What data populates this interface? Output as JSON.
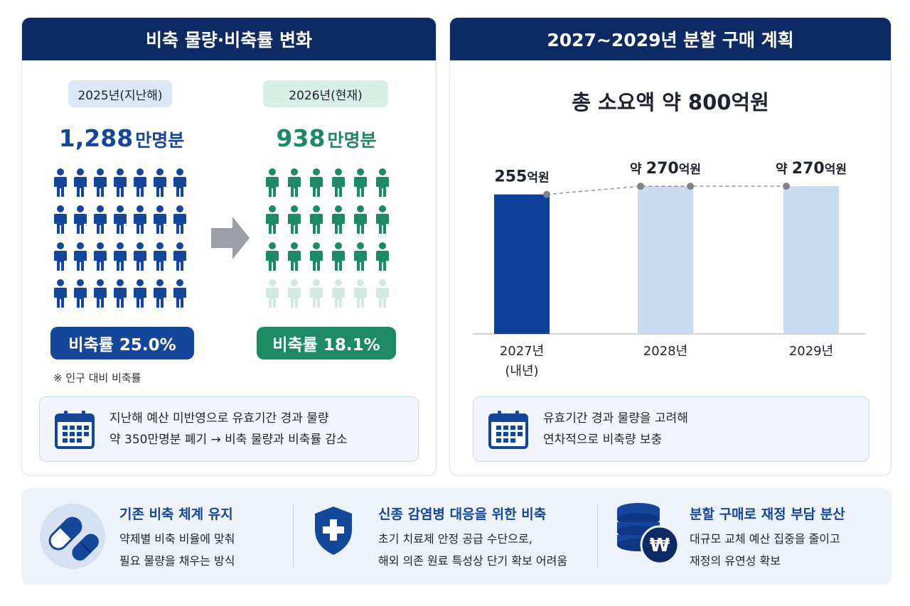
{
  "left_panel": {
    "title": "비축 물량·비축률 변화",
    "year_2025": {
      "label": "2025년(지난해)",
      "count_value": "1,288",
      "count_unit": "만명분",
      "rate": "비축률 25.0%",
      "filled_rows": 4,
      "total_rows": 4,
      "cols": 7,
      "color": "#14469a"
    },
    "year_2026": {
      "label": "2026년(현재)",
      "count_value": "938",
      "count_unit": "만명분",
      "rate": "비축률 18.1%",
      "filled_rows": 3,
      "total_rows": 4,
      "cols": 6,
      "color": "#1e8a63",
      "faded_color": "#d3e9e0"
    },
    "footnote": "※ 인구 대비 비축률",
    "info_line1": "지난해 예산 미반영으로 유효기간 경과 물량",
    "info_line2": "약 350만명분 폐기 → 비축 물량과 비축률 감소"
  },
  "right_panel": {
    "title": "2027~2029년 분할 구매 계획",
    "total": "총 소요액 약 800억원",
    "info_line1": "유효기간 경과 물량을 고려해",
    "info_line2": "연차적으로 비축량 보충"
  },
  "chart_data": {
    "type": "bar",
    "categories": [
      "2027년\n(내년)",
      "2028년",
      "2029년"
    ],
    "category_lines": [
      [
        "2027년",
        "(내년)"
      ],
      [
        "2028년"
      ],
      [
        "2029년"
      ]
    ],
    "values": [
      255,
      270,
      270
    ],
    "value_labels": [
      {
        "prefix": "",
        "num": "255",
        "unit": "억원"
      },
      {
        "prefix": "약 ",
        "num": "270",
        "unit": "억원"
      },
      {
        "prefix": "약 ",
        "num": "270",
        "unit": "억원"
      }
    ],
    "unit": "억원",
    "ylim": [
      0,
      300
    ],
    "bar_colors": [
      "#0e3f99",
      "#c9dbf1",
      "#c9dbf1"
    ],
    "trend_line": true,
    "trend_color": "#8e949c",
    "title": "총 소요액 약 800억원",
    "xlabel": "",
    "ylabel": ""
  },
  "features": [
    {
      "title": "기존 비축 체계 유지",
      "line1": "약제별 비축 비율에 맞춰",
      "line2": "필요 물량을 채우는 방식",
      "icon": "pill-capsule-icon"
    },
    {
      "title": "신종 감염병 대응을 위한 비축",
      "line1": "초기 치료제 안정 공급 수단으로,",
      "line2": "해외 의존 원료 특성상 단기 확보 어려움",
      "icon": "medical-shield-icon"
    },
    {
      "title": "분할 구매로 재정 부담 분산",
      "line1": "대규모 교체 예산 집중을 줄이고",
      "line2": "재정의 유연성 확보",
      "icon": "coin-stack-won-icon",
      "icon_symbol": "₩"
    }
  ],
  "colors": {
    "navy": "#0e2a64",
    "blue": "#14469a",
    "green": "#1e8a63",
    "light_bar": "#c9dbf1"
  }
}
